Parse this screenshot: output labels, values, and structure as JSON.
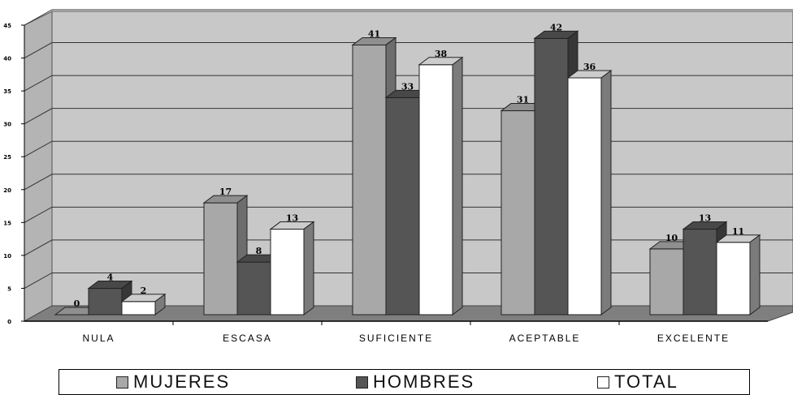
{
  "chart_data": {
    "type": "bar",
    "categories": [
      "NULA",
      "ESCASA",
      "SUFICIENTE",
      "ACEPTABLE",
      "EXCELENTE"
    ],
    "series": [
      {
        "name": "MUJERES",
        "values": [
          0,
          17,
          41,
          31,
          10
        ],
        "color": "#a8a8a8"
      },
      {
        "name": "HOMBRES",
        "values": [
          4,
          8,
          33,
          42,
          13
        ],
        "color": "#555555"
      },
      {
        "name": "TOTAL",
        "values": [
          2,
          13,
          38,
          36,
          11
        ],
        "color": "#ffffff"
      }
    ],
    "ylim": [
      0,
      45
    ],
    "yticks": [
      0,
      5,
      10,
      15,
      20,
      25,
      30,
      35,
      40,
      45
    ],
    "grid": true,
    "style": "3d-clustered-column",
    "legend_position": "bottom",
    "colors": {
      "wall": "#c8c8c8",
      "floor": "#7f7f7f",
      "grid": "#333333"
    }
  }
}
